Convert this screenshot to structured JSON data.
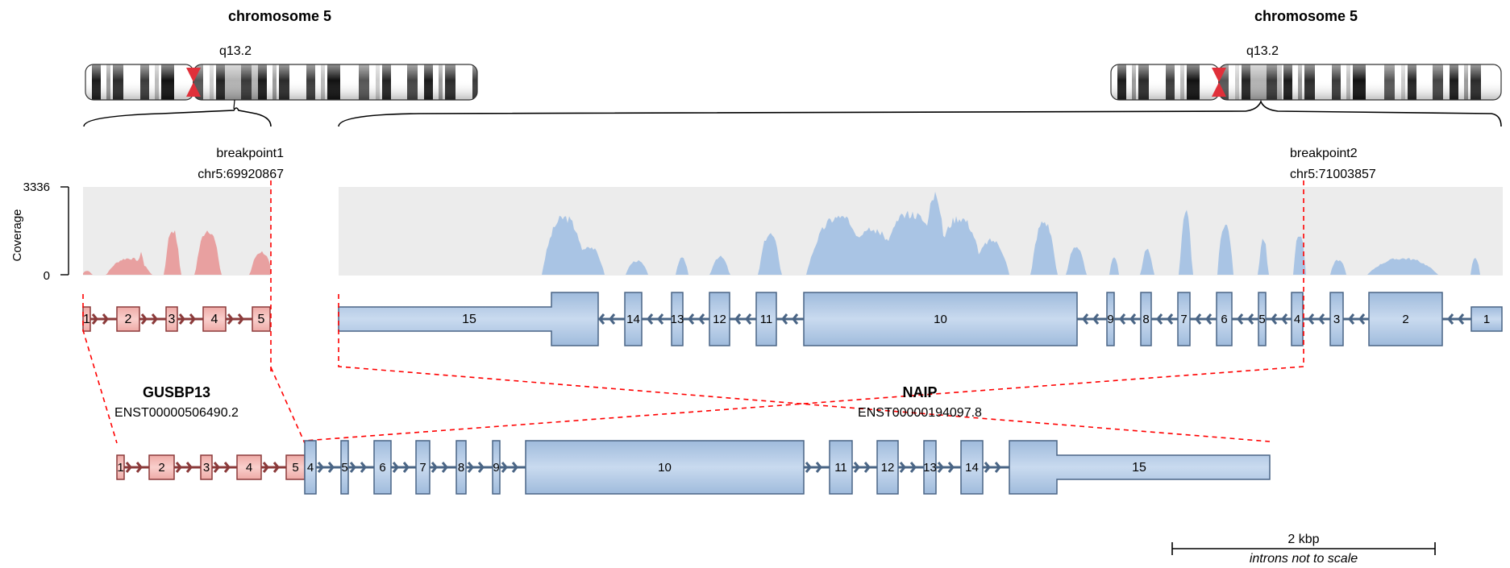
{
  "left_chromosome": {
    "title": "chromosome 5",
    "band": "q13.2"
  },
  "right_chromosome": {
    "title": "chromosome 5",
    "band": "q13.2"
  },
  "breakpoint1": {
    "name": "breakpoint1",
    "position": "chr5:69920867"
  },
  "breakpoint2": {
    "name": "breakpoint2",
    "position": "chr5:71003857"
  },
  "coverage": {
    "axis_label": "Coverage",
    "max_label": "3336",
    "min_label": "0"
  },
  "gene1": {
    "symbol": "GUSBP13",
    "transcript": "ENST00000506490.2",
    "colors": {
      "fill": "#f4b6b3",
      "stroke": "#8b3a3a",
      "coverage": "#e8a0a0"
    },
    "exons": [
      "1",
      "2",
      "3",
      "4",
      "5"
    ]
  },
  "gene2": {
    "symbol": "NAIP",
    "transcript": "ENST00000194097.8",
    "colors": {
      "fill": "#b3cbe6",
      "stroke": "#4a6585",
      "coverage": "#a9c4e4"
    },
    "exons": [
      "15",
      "14",
      "13",
      "12",
      "11",
      "10",
      "9",
      "8",
      "7",
      "6",
      "5",
      "4",
      "3",
      "2",
      "1"
    ]
  },
  "fusion": {
    "gene1_exons": [
      "1",
      "2",
      "3",
      "4",
      "5"
    ],
    "gene2_exons": [
      "4",
      "5",
      "6",
      "7",
      "8",
      "9",
      "10",
      "11",
      "12",
      "13",
      "14",
      "15"
    ]
  },
  "scale_bar": {
    "label": "2 kbp",
    "note": "introns not to scale"
  }
}
